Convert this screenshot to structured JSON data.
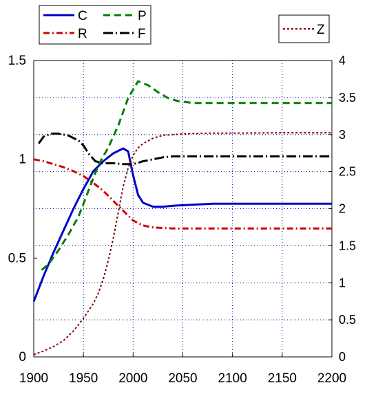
{
  "chart_data": {
    "type": "line",
    "title": "",
    "xlabel": "",
    "ylabel_left": "",
    "ylabel_right": "",
    "xlim": [
      1900,
      2200
    ],
    "ylim_left": [
      0,
      1.5
    ],
    "ylim_right": [
      0,
      4
    ],
    "x_ticks": [
      1900,
      1950,
      2000,
      2050,
      2100,
      2150,
      2200
    ],
    "x_tick_labels": [
      "1900",
      "1950",
      "2000",
      "2050",
      "2100",
      "2150",
      "2200"
    ],
    "y_left_ticks": [
      0,
      0.5,
      1,
      1.5
    ],
    "y_left_tick_labels": [
      "0",
      "0.5",
      "1",
      "1.5"
    ],
    "y_right_ticks": [
      0,
      0.5,
      1,
      1.5,
      2,
      2.5,
      3,
      3.5,
      4
    ],
    "y_right_tick_labels": [
      "0",
      "0.5",
      "1",
      "1.5",
      "2",
      "2.5",
      "3",
      "3.5",
      "4"
    ],
    "grid": true,
    "legend_left_placement": "top-left, outside plot",
    "legend_right_placement": "top-right, outside plot",
    "series": [
      {
        "name": "C",
        "axis": "left",
        "color": "#0000cc",
        "dash": "solid",
        "x": [
          1900,
          1910,
          1920,
          1930,
          1940,
          1950,
          1960,
          1970,
          1980,
          1990,
          1995,
          2000,
          2005,
          2010,
          2020,
          2030,
          2040,
          2060,
          2080,
          2100,
          2150,
          2200
        ],
        "y": [
          0.28,
          0.41,
          0.53,
          0.64,
          0.75,
          0.85,
          0.94,
          0.99,
          1.03,
          1.055,
          1.04,
          0.92,
          0.82,
          0.78,
          0.76,
          0.76,
          0.765,
          0.77,
          0.775,
          0.775,
          0.775,
          0.775
        ]
      },
      {
        "name": "R",
        "axis": "left",
        "color": "#cc0000",
        "dash": "dashdot",
        "x": [
          1900,
          1910,
          1920,
          1930,
          1940,
          1950,
          1960,
          1970,
          1980,
          1990,
          2000,
          2010,
          2020,
          2040,
          2060,
          2100,
          2150,
          2200
        ],
        "y": [
          1.0,
          0.99,
          0.975,
          0.96,
          0.94,
          0.915,
          0.88,
          0.84,
          0.79,
          0.74,
          0.69,
          0.665,
          0.655,
          0.65,
          0.65,
          0.65,
          0.65,
          0.65
        ]
      },
      {
        "name": "P",
        "axis": "left",
        "color": "#008000",
        "dash": "dashed",
        "x": [
          1908,
          1915,
          1925,
          1935,
          1945,
          1955,
          1965,
          1975,
          1985,
          1995,
          2005,
          2015,
          2025,
          2035,
          2045,
          2060,
          2080,
          2100,
          2150,
          2200
        ],
        "y": [
          0.44,
          0.47,
          0.54,
          0.62,
          0.71,
          0.84,
          0.97,
          1.06,
          1.17,
          1.31,
          1.395,
          1.375,
          1.34,
          1.31,
          1.295,
          1.285,
          1.285,
          1.285,
          1.285,
          1.285
        ]
      },
      {
        "name": "F",
        "axis": "left",
        "color": "#000000",
        "dash": "longdashdot",
        "x": [
          1905,
          1910,
          1918,
          1925,
          1935,
          1945,
          1950,
          1955,
          1962,
          1970,
          1980,
          1990,
          2000,
          2010,
          2020,
          2030,
          2040,
          2050,
          2100,
          2150,
          2200
        ],
        "y": [
          1.08,
          1.115,
          1.13,
          1.13,
          1.12,
          1.095,
          1.07,
          1.03,
          0.99,
          0.98,
          0.98,
          0.975,
          0.975,
          0.99,
          1.0,
          1.01,
          1.015,
          1.015,
          1.015,
          1.015,
          1.015
        ]
      },
      {
        "name": "Z",
        "axis": "right",
        "color": "#800000",
        "dash": "dotted",
        "x": [
          1900,
          1910,
          1920,
          1930,
          1940,
          1950,
          1960,
          1965,
          1970,
          1975,
          1980,
          1985,
          1990,
          1995,
          2000,
          2005,
          2010,
          2020,
          2030,
          2040,
          2050,
          2060,
          2080,
          2100,
          2150,
          2200
        ],
        "y": [
          0.03,
          0.08,
          0.14,
          0.22,
          0.35,
          0.52,
          0.72,
          0.86,
          1.05,
          1.3,
          1.6,
          1.95,
          2.3,
          2.55,
          2.72,
          2.82,
          2.88,
          2.95,
          2.99,
          3.0,
          3.01,
          3.015,
          3.02,
          3.02,
          3.025,
          3.025
        ]
      }
    ],
    "legend_left": [
      {
        "label": "C",
        "color": "#0000cc",
        "dash": "solid"
      },
      {
        "label": "P",
        "color": "#008000",
        "dash": "dashed"
      },
      {
        "label": "R",
        "color": "#cc0000",
        "dash": "dashdot"
      },
      {
        "label": "F",
        "color": "#000000",
        "dash": "longdashdot"
      }
    ],
    "legend_right": [
      {
        "label": "Z",
        "color": "#800000",
        "dash": "dotted"
      }
    ]
  }
}
